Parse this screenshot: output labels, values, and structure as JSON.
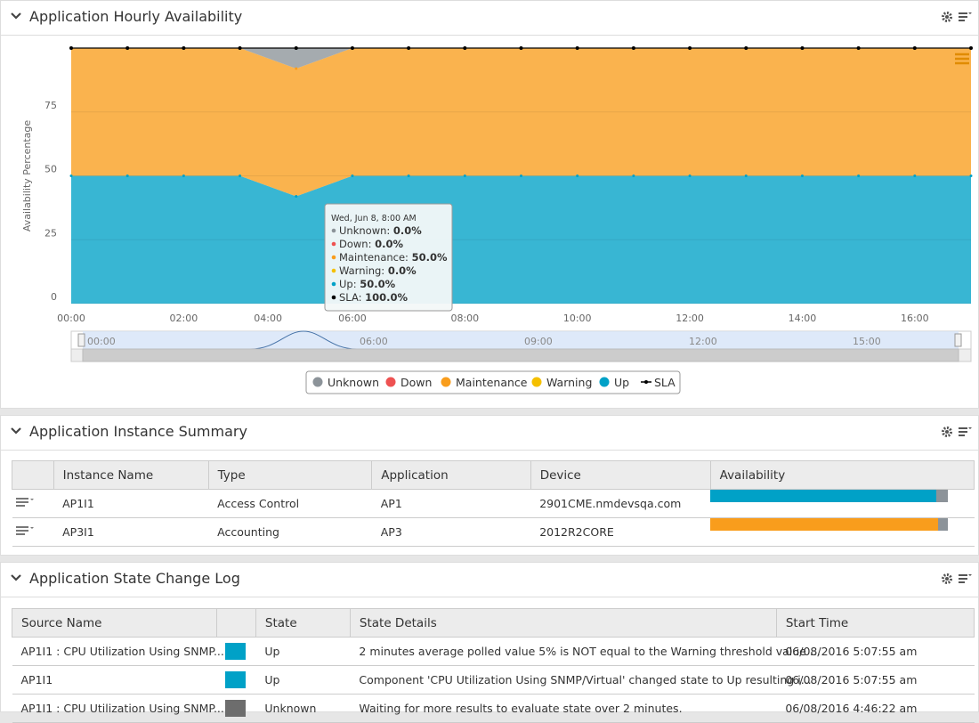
{
  "hourly": {
    "title": "Application Hourly Availability"
  },
  "chart_data": {
    "type": "area",
    "stacked": true,
    "y_label": "Availability Percentage",
    "x": [
      0,
      1,
      2,
      3,
      4,
      5,
      6,
      7,
      8,
      9,
      10,
      11,
      12,
      13,
      14,
      15,
      16
    ],
    "xlim": [
      0,
      16
    ],
    "xticks": [
      {
        "value": 0,
        "label": "00:00"
      },
      {
        "value": 2,
        "label": "02:00"
      },
      {
        "value": 3.5,
        "label": "04:00"
      },
      {
        "value": 5,
        "label": "06:00"
      },
      {
        "value": 7,
        "label": "08:00"
      },
      {
        "value": 9,
        "label": "10:00"
      },
      {
        "value": 11,
        "label": "12:00"
      },
      {
        "value": 13,
        "label": "14:00"
      },
      {
        "value": 15,
        "label": "16:00"
      }
    ],
    "ylim": [
      0,
      100
    ],
    "yticks": [
      0,
      25,
      50,
      75
    ],
    "grid": true,
    "legend": "bottom",
    "series": [
      {
        "name": "Unknown",
        "color": "#8c9399",
        "values": [
          0,
          0,
          0,
          0,
          8,
          0,
          0,
          0,
          0,
          0,
          0,
          0,
          0,
          0,
          0,
          0,
          0
        ]
      },
      {
        "name": "Down",
        "color": "#ee5252",
        "values": [
          0,
          0,
          0,
          0,
          0,
          0,
          0,
          0,
          0,
          0,
          0,
          0,
          0,
          0,
          0,
          0,
          0
        ]
      },
      {
        "name": "Maintenance",
        "color": "#f99d1c",
        "values": [
          50,
          50,
          50,
          50,
          50,
          50,
          50,
          50,
          50,
          50,
          50,
          50,
          50,
          50,
          50,
          50,
          50
        ]
      },
      {
        "name": "Warning",
        "color": "#f5c000",
        "values": [
          0,
          0,
          0,
          0,
          0,
          0,
          0,
          0,
          0,
          0,
          0,
          0,
          0,
          0,
          0,
          0,
          0
        ]
      },
      {
        "name": "Up",
        "color": "#00a1c7",
        "values": [
          50,
          50,
          50,
          50,
          42,
          50,
          50,
          50,
          50,
          50,
          50,
          50,
          50,
          50,
          50,
          50,
          50
        ]
      },
      {
        "name": "SLA",
        "color": "#000000",
        "type": "line",
        "values": [
          100,
          100,
          100,
          100,
          100,
          100,
          100,
          100,
          100,
          100,
          100,
          100,
          100,
          100,
          100,
          100,
          100
        ]
      }
    ],
    "tooltip": {
      "title": "Wed, Jun 8, 8:00 AM",
      "items": [
        {
          "label": "Unknown: ",
          "value": "0.0%"
        },
        {
          "label": "Down: ",
          "value": "0.0%"
        },
        {
          "label": "Maintenance: ",
          "value": "50.0%"
        },
        {
          "label": "Warning: ",
          "value": "0.0%"
        },
        {
          "label": "Up: ",
          "value": "50.0%"
        },
        {
          "label": "SLA: ",
          "value": "100.0%"
        }
      ]
    },
    "navigator_labels": [
      "00:00",
      "06:00",
      "09:00",
      "12:00",
      "15:00"
    ]
  },
  "instance_summary": {
    "title": "Application Instance Summary",
    "columns": [
      "Instance Name",
      "Type",
      "Application",
      "Device",
      "Availability"
    ],
    "rows": [
      {
        "cells": [
          "AP1I1",
          "Access Control",
          "AP1",
          "2901CME.nmdevsqa.com"
        ],
        "availability": [
          {
            "value": 95,
            "color": "#00a1c7"
          },
          {
            "value": 5,
            "color": "#8c9399"
          }
        ]
      },
      {
        "cells": [
          "AP3I1",
          "Accounting",
          "AP3",
          "2012R2CORE"
        ],
        "availability": [
          {
            "value": 96,
            "color": "#f99d1c"
          },
          {
            "value": 4,
            "color": "#8c9399"
          }
        ]
      }
    ]
  },
  "state_log": {
    "title": "Application State Change Log",
    "columns": [
      "Source Name",
      "State",
      "State Details",
      "Start Time"
    ],
    "rows": [
      {
        "source": "AP1I1 : CPU Utilization Using SNMP...",
        "state_color": "#00a1c7",
        "state": "Up",
        "details": "2 minutes average polled value 5% is NOT equal to the Warning threshold value ...",
        "time": "06/08/2016 5:07:55 am"
      },
      {
        "source": "AP1I1",
        "state_color": "#00a1c7",
        "state": "Up",
        "details": "Component 'CPU Utilization Using SNMP/Virtual' changed state to Up resulting i...",
        "time": "06/08/2016 5:07:55 am"
      },
      {
        "source": "AP1I1 : CPU Utilization Using SNMP...",
        "state_color": "#6d6d6d",
        "state": "Unknown",
        "details": "Waiting for more results to evaluate state over 2 minutes.",
        "time": "06/08/2016 4:46:22 am"
      }
    ]
  }
}
